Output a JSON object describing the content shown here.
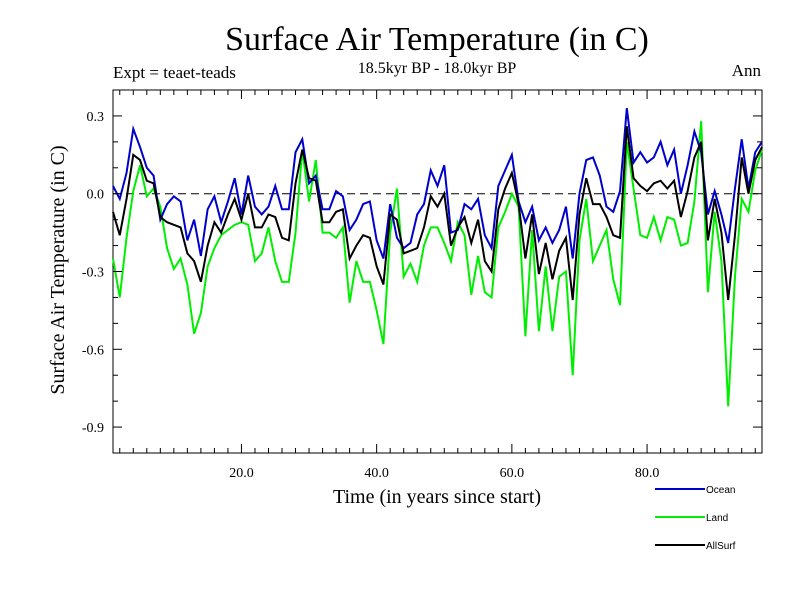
{
  "chart_data": {
    "type": "line",
    "title": "Surface Air Temperature (in C)",
    "subtitle": "18.5kyr BP - 18.0kyr BP",
    "left_label": "Expt = teaet-teads",
    "right_label": "Ann",
    "xlabel": "Time (in years since start)",
    "ylabel": "Surface Air Temperature (in C)",
    "xlim": [
      1,
      97
    ],
    "ylim": [
      -1.0,
      0.4
    ],
    "x_ticks": [
      20,
      40,
      60,
      80
    ],
    "x_tick_labels": [
      "20.0",
      "40.0",
      "60.0",
      "80.0"
    ],
    "y_ticks": [
      0.3,
      0.0,
      -0.3,
      -0.6,
      -0.9
    ],
    "y_tick_labels": [
      "0.3",
      "0.0",
      "-0.3",
      "-0.6",
      "-0.9"
    ],
    "zero_line": "dashed",
    "legend_position": "bottom-right",
    "series": [
      {
        "name": "Ocean",
        "color": "#0000cc",
        "values": [
          0.03,
          -0.02,
          0.08,
          0.25,
          0.18,
          0.1,
          0.07,
          -0.1,
          -0.04,
          -0.01,
          -0.03,
          -0.18,
          -0.1,
          -0.24,
          -0.06,
          -0.01,
          -0.11,
          -0.03,
          0.06,
          -0.08,
          0.07,
          -0.05,
          -0.08,
          -0.05,
          0.03,
          -0.06,
          -0.06,
          0.16,
          0.21,
          0.04,
          0.07,
          -0.06,
          -0.06,
          0.01,
          -0.01,
          -0.14,
          -0.1,
          -0.04,
          -0.03,
          -0.18,
          -0.25,
          -0.04,
          -0.17,
          -0.21,
          -0.19,
          -0.08,
          -0.04,
          0.09,
          0.03,
          0.11,
          -0.15,
          -0.14,
          -0.04,
          -0.06,
          -0.02,
          -0.16,
          -0.21,
          0.03,
          0.09,
          0.15,
          -0.03,
          -0.11,
          -0.05,
          -0.18,
          -0.13,
          -0.19,
          -0.14,
          -0.05,
          -0.25,
          0.0,
          0.13,
          0.14,
          0.07,
          -0.05,
          -0.07,
          0.01,
          0.33,
          0.12,
          0.16,
          0.12,
          0.14,
          0.2,
          0.11,
          0.17,
          0.0,
          0.11,
          0.24,
          0.16,
          -0.08,
          0.01,
          -0.08,
          -0.19,
          0.02,
          0.21,
          0.02,
          0.16,
          0.2
        ]
      },
      {
        "name": "Land",
        "color": "#00ee00",
        "values": [
          -0.25,
          -0.4,
          -0.17,
          0.01,
          0.11,
          -0.01,
          0.02,
          -0.05,
          -0.21,
          -0.29,
          -0.25,
          -0.35,
          -0.54,
          -0.46,
          -0.28,
          -0.21,
          -0.16,
          -0.14,
          -0.12,
          -0.11,
          -0.12,
          -0.26,
          -0.23,
          -0.13,
          -0.26,
          -0.34,
          -0.34,
          -0.15,
          0.17,
          -0.03,
          0.13,
          -0.15,
          -0.15,
          -0.17,
          -0.13,
          -0.42,
          -0.26,
          -0.34,
          -0.34,
          -0.45,
          -0.58,
          -0.15,
          0.02,
          -0.32,
          -0.27,
          -0.34,
          -0.2,
          -0.13,
          -0.13,
          -0.19,
          -0.26,
          -0.11,
          -0.16,
          -0.39,
          -0.24,
          -0.38,
          -0.4,
          -0.13,
          -0.07,
          0.0,
          -0.05,
          -0.55,
          -0.14,
          -0.53,
          -0.28,
          -0.53,
          -0.32,
          -0.3,
          -0.7,
          -0.18,
          -0.02,
          -0.26,
          -0.2,
          -0.14,
          -0.33,
          -0.43,
          0.2,
          0.02,
          -0.16,
          -0.17,
          -0.09,
          -0.18,
          -0.09,
          -0.1,
          -0.2,
          -0.19,
          -0.03,
          0.28,
          -0.38,
          -0.07,
          -0.26,
          -0.82,
          -0.32,
          -0.02,
          -0.07,
          0.09,
          0.17
        ]
      },
      {
        "name": "AllSurf",
        "color": "#000000",
        "values": [
          -0.07,
          -0.16,
          -0.02,
          0.15,
          0.13,
          0.05,
          0.04,
          -0.09,
          -0.11,
          -0.12,
          -0.13,
          -0.23,
          -0.26,
          -0.34,
          -0.2,
          -0.11,
          -0.15,
          -0.08,
          -0.02,
          -0.1,
          0.0,
          -0.13,
          -0.13,
          -0.08,
          -0.09,
          -0.17,
          -0.18,
          0.04,
          0.17,
          0.06,
          0.05,
          -0.11,
          -0.11,
          -0.07,
          -0.06,
          -0.25,
          -0.2,
          -0.16,
          -0.17,
          -0.28,
          -0.35,
          -0.08,
          -0.1,
          -0.23,
          -0.22,
          -0.21,
          -0.13,
          -0.01,
          -0.05,
          0.0,
          -0.2,
          -0.13,
          -0.09,
          -0.19,
          -0.1,
          -0.26,
          -0.3,
          -0.06,
          0.02,
          0.08,
          -0.04,
          -0.25,
          -0.08,
          -0.31,
          -0.19,
          -0.33,
          -0.22,
          -0.17,
          -0.41,
          -0.08,
          0.06,
          -0.04,
          -0.04,
          -0.09,
          -0.16,
          -0.17,
          0.26,
          0.06,
          0.03,
          0.01,
          0.04,
          0.05,
          0.02,
          0.05,
          -0.09,
          0.01,
          0.14,
          0.2,
          -0.18,
          -0.02,
          -0.15,
          -0.41,
          -0.16,
          0.14,
          0.0,
          0.13,
          0.18
        ]
      }
    ]
  }
}
